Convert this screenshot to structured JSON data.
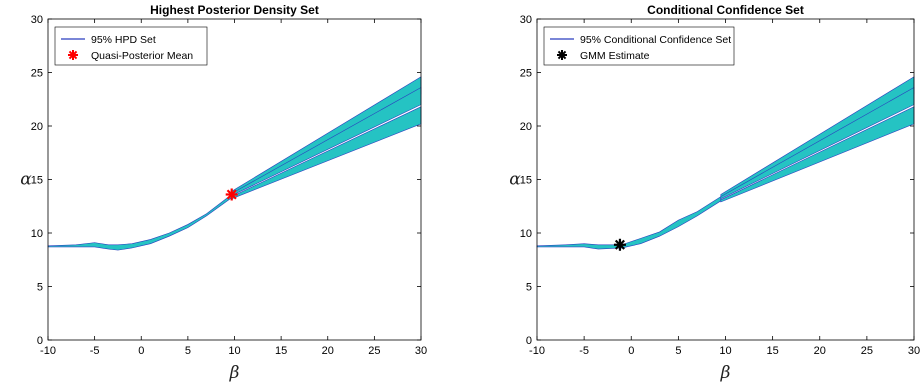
{
  "chart_data": [
    {
      "type": "area",
      "title": "Highest Posterior Density Set",
      "xlabel": "β",
      "ylabel": "α",
      "xlim": [
        -10,
        30
      ],
      "ylim": [
        0,
        30
      ],
      "xticks": [
        -10,
        -5,
        0,
        5,
        10,
        15,
        20,
        25,
        30
      ],
      "yticks": [
        0,
        5,
        10,
        15,
        20,
        25,
        30
      ],
      "legend_position": "top-left",
      "regions": [
        {
          "name": "trunk_upper",
          "x": [
            -10,
            -7,
            -5,
            -3.5,
            -2.5,
            -1,
            0,
            1,
            3,
            5,
            7,
            9.7
          ],
          "y": [
            8.8,
            8.9,
            9.1,
            8.9,
            8.9,
            9.0,
            9.2,
            9.4,
            10.0,
            10.8,
            11.8,
            13.6
          ]
        },
        {
          "name": "trunk_lower",
          "x": [
            9.7,
            7,
            5,
            3,
            1,
            0,
            -1,
            -2.5,
            -3.5,
            -5,
            -7,
            -10
          ],
          "y": [
            13.3,
            11.6,
            10.5,
            9.7,
            9.0,
            8.8,
            8.6,
            8.4,
            8.5,
            8.7,
            8.7,
            8.7
          ]
        },
        {
          "name": "branch_upper",
          "x": [
            9.7,
            30
          ],
          "y_top": [
            13.9,
            24.6
          ],
          "y_bottom": [
            13.6,
            23.0
          ]
        },
        {
          "name": "branch_middle",
          "x": [
            9.7,
            30
          ],
          "y_top": [
            13.7,
            23.6
          ],
          "y_bottom": [
            13.5,
            22.0
          ]
        },
        {
          "name": "branch_lower",
          "x": [
            9.7,
            30
          ],
          "y_top": [
            13.4,
            21.8
          ],
          "y_bottom": [
            13.2,
            20.2
          ]
        }
      ],
      "series": [
        {
          "name": "95% HPD Set",
          "kind": "region",
          "color": "#2a3fbf"
        },
        {
          "name": "Quasi-Posterior Mean",
          "kind": "point",
          "color": "#ff0000",
          "marker": "asterisk",
          "x": 9.7,
          "y": 13.6
        }
      ]
    },
    {
      "type": "area",
      "title": "Conditional Confidence Set",
      "xlabel": "β",
      "ylabel": "α",
      "xlim": [
        -10,
        30
      ],
      "ylim": [
        0,
        30
      ],
      "xticks": [
        -10,
        -5,
        0,
        5,
        10,
        15,
        20,
        25,
        30
      ],
      "yticks": [
        0,
        5,
        10,
        15,
        20,
        25,
        30
      ],
      "legend_position": "top-left",
      "regions": [
        {
          "name": "trunk_left",
          "x": [
            -10,
            -7,
            -5,
            -3.5,
            -1,
            -1,
            -3.5,
            -5,
            -7,
            -10
          ],
          "y": [
            8.8,
            8.9,
            9.0,
            8.9,
            8.9,
            8.6,
            8.5,
            8.7,
            8.7,
            8.7
          ]
        },
        {
          "name": "trunk_right_upper",
          "x": [
            -1,
            1,
            3,
            5,
            7,
            9.5
          ],
          "y": [
            8.9,
            9.5,
            10.1,
            11.2,
            12.0,
            13.4
          ]
        },
        {
          "name": "trunk_right_lower",
          "x": [
            9.5,
            7,
            5,
            3,
            1,
            -1
          ],
          "y": [
            13.0,
            11.6,
            10.6,
            9.7,
            9.0,
            8.6
          ]
        },
        {
          "name": "branch_upper",
          "x": [
            9.5,
            30
          ],
          "y_top": [
            13.6,
            24.6
          ],
          "y_bottom": [
            13.3,
            23.0
          ]
        },
        {
          "name": "branch_middle",
          "x": [
            9.5,
            30
          ],
          "y_top": [
            13.4,
            23.6
          ],
          "y_bottom": [
            13.2,
            22.0
          ]
        },
        {
          "name": "branch_lower",
          "x": [
            9.5,
            30
          ],
          "y_top": [
            13.1,
            21.8
          ],
          "y_bottom": [
            12.9,
            20.2
          ]
        }
      ],
      "series": [
        {
          "name": "95% Conditional Confidence Set",
          "kind": "region",
          "color": "#2a3fbf"
        },
        {
          "name": "GMM Estimate",
          "kind": "point",
          "color": "#000000",
          "marker": "asterisk",
          "x": -1.2,
          "y": 8.9
        }
      ]
    }
  ],
  "colors": {
    "fill": "#25c3c3",
    "outline": "#2a3fbf"
  }
}
